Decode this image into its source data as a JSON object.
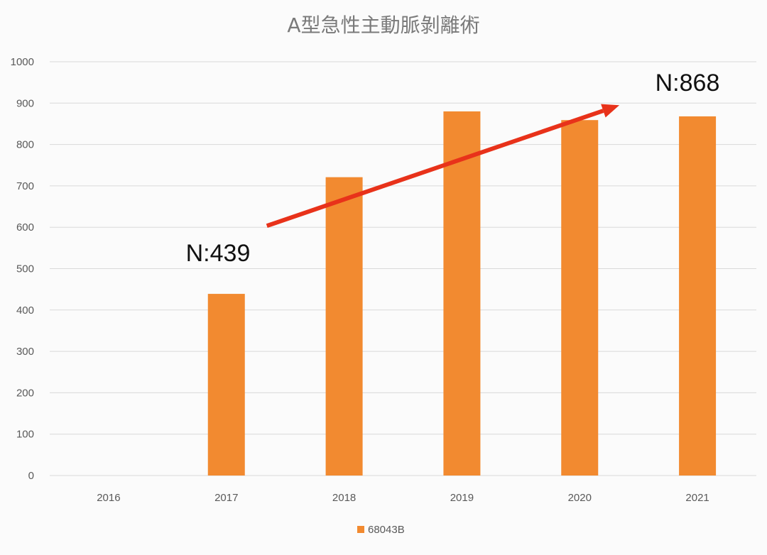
{
  "chart_data": {
    "type": "bar",
    "title": "A型急性主動脈剝離術",
    "categories": [
      "2016",
      "2017",
      "2018",
      "2019",
      "2020",
      "2021"
    ],
    "series": [
      {
        "name": "68043B",
        "values": [
          0,
          439,
          721,
          880,
          859,
          868
        ],
        "color": "#f28a30"
      }
    ],
    "ylim": [
      0,
      1000
    ],
    "yticks": [
      0,
      100,
      200,
      300,
      400,
      500,
      600,
      700,
      800,
      900,
      1000
    ],
    "grid": true,
    "legend": "bottom",
    "annotations": [
      {
        "text": "N:439"
      },
      {
        "text": "N:868"
      }
    ],
    "trend_arrow": {
      "from_category": "2017",
      "to_category": "2021",
      "from_value": 600,
      "to_value": 900,
      "color": "#e8321a"
    }
  }
}
